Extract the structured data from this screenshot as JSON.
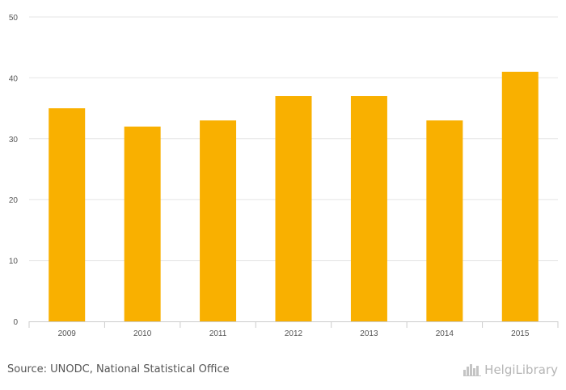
{
  "chart_data": {
    "type": "bar",
    "categories": [
      "2009",
      "2010",
      "2011",
      "2012",
      "2013",
      "2014",
      "2015"
    ],
    "values": [
      35,
      32,
      33,
      37,
      37,
      33,
      41
    ],
    "title": "",
    "xlabel": "",
    "ylabel": "",
    "ylim": [
      0,
      50
    ],
    "yticks": [
      0,
      10,
      20,
      30,
      40,
      50
    ],
    "grid": true,
    "bar_color": "#f9b000",
    "grid_color": "#e6e6e6"
  },
  "footer": {
    "source": "Source: UNODC, National Statistical Office",
    "brand": "HelgiLibrary"
  },
  "brand_icon": "city-skyline-icon"
}
